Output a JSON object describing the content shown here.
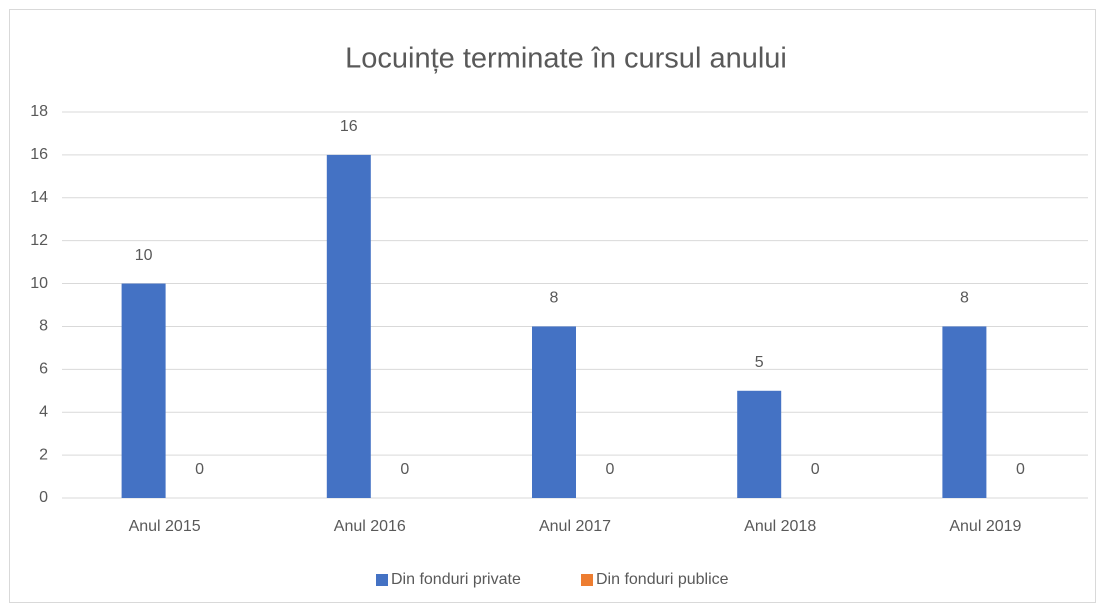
{
  "chart_data": {
    "type": "bar",
    "title": "Locuințe terminate în cursul anului",
    "categories": [
      "Anul 2015",
      "Anul 2016",
      "Anul 2017",
      "Anul 2018",
      "Anul 2019"
    ],
    "series": [
      {
        "name": "Din fonduri private",
        "color": "#4472c4",
        "values": [
          10,
          16,
          8,
          5,
          8
        ]
      },
      {
        "name": "Din fonduri publice",
        "color": "#ed7d31",
        "values": [
          0,
          0,
          0,
          0,
          0
        ]
      }
    ],
    "ylim": [
      0,
      18
    ],
    "yticks": [
      0,
      2,
      4,
      6,
      8,
      10,
      12,
      14,
      16,
      18
    ],
    "grid": true,
    "legend": "bottom"
  }
}
